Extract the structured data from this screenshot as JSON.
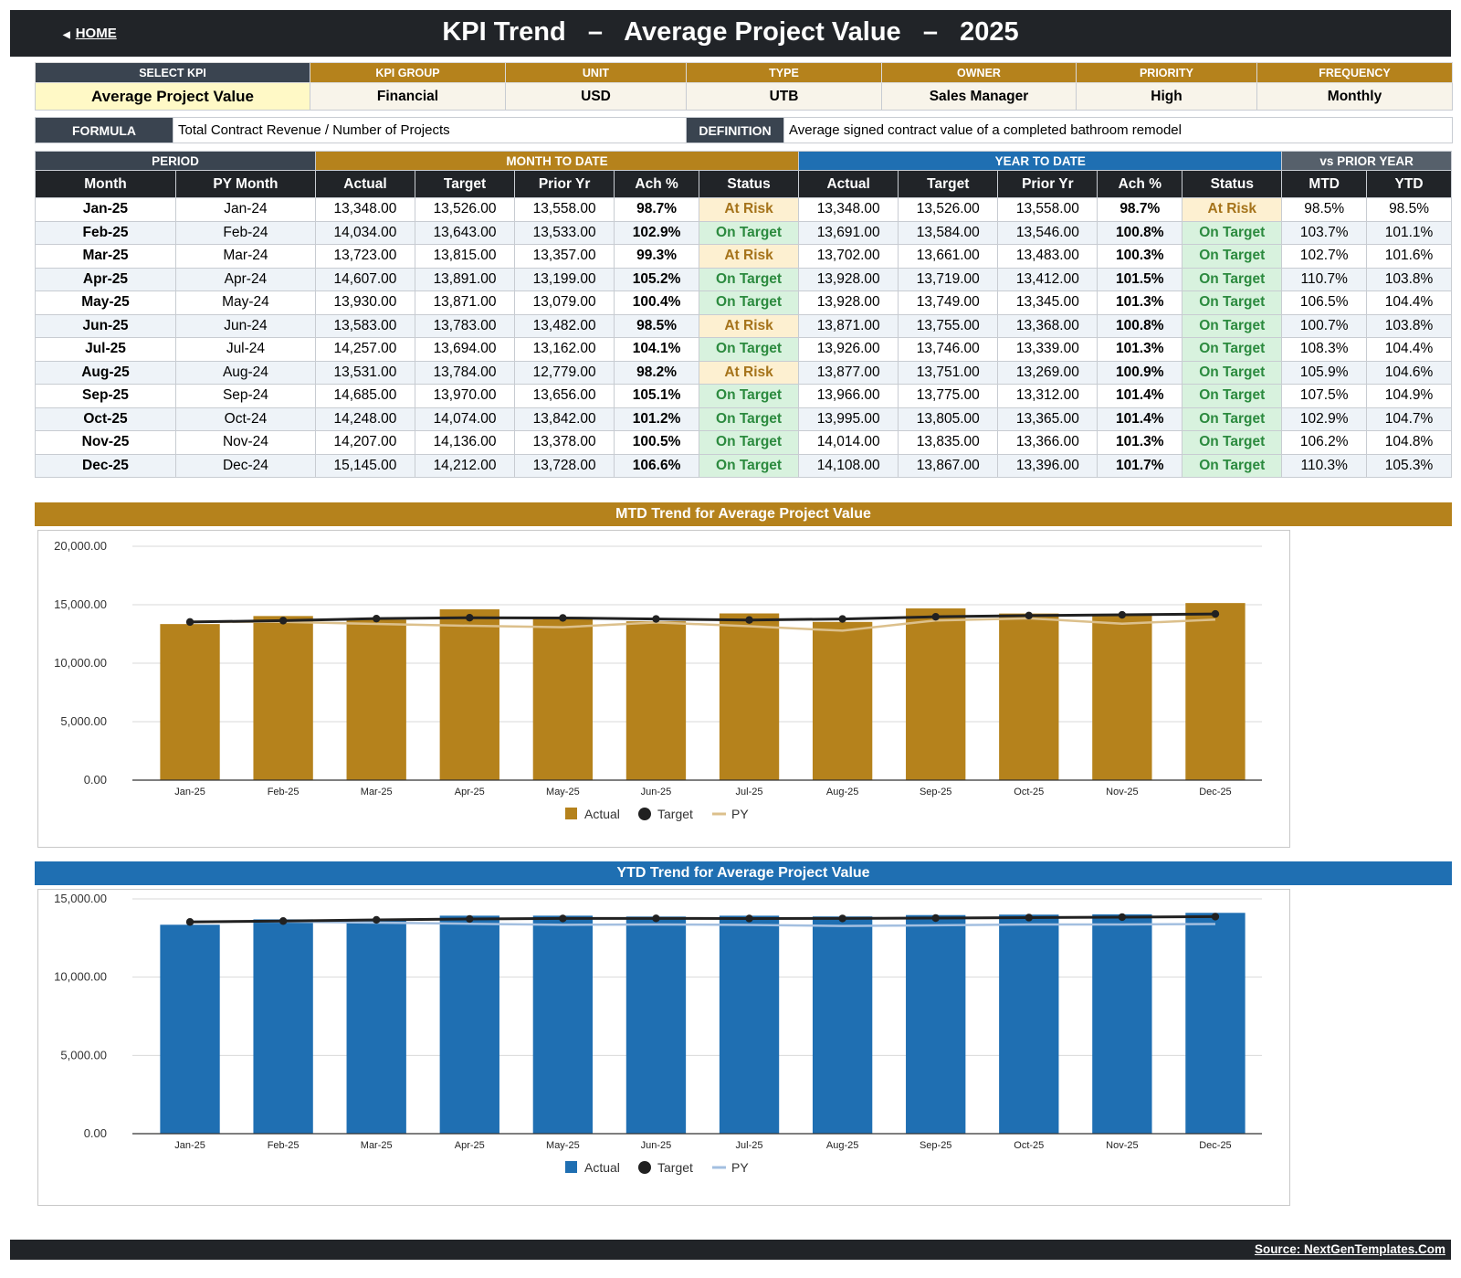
{
  "header": {
    "home_label": "HOME",
    "title": "KPI Trend   –   Average Project Value   –   2025"
  },
  "meta": {
    "headers": [
      "SELECT KPI",
      "KPI GROUP",
      "UNIT",
      "TYPE",
      "OWNER",
      "PRIORITY",
      "FREQUENCY"
    ],
    "values": [
      "Average Project Value",
      "Financial",
      "USD",
      "UTB",
      "Sales Manager",
      "High",
      "Monthly"
    ]
  },
  "formula": {
    "formula_label": "FORMULA",
    "formula_text": "Total Contract Revenue / Number of Projects",
    "definition_label": "DEFINITION",
    "definition_text": "Average signed contract value of a completed bathroom remodel"
  },
  "table": {
    "groups": [
      "PERIOD",
      "MONTH TO DATE",
      "YEAR TO DATE",
      "vs PRIOR YEAR"
    ],
    "columns": [
      "Month",
      "PY Month",
      "Actual",
      "Target",
      "Prior Yr",
      "Ach %",
      "Status",
      "Actual",
      "Target",
      "Prior Yr",
      "Ach %",
      "Status",
      "MTD",
      "YTD"
    ],
    "rows": [
      [
        "Jan-25",
        "Jan-24",
        "13,348.00",
        "13,526.00",
        "13,558.00",
        "98.7%",
        "At Risk",
        "13,348.00",
        "13,526.00",
        "13,558.00",
        "98.7%",
        "At Risk",
        "98.5%",
        "98.5%"
      ],
      [
        "Feb-25",
        "Feb-24",
        "14,034.00",
        "13,643.00",
        "13,533.00",
        "102.9%",
        "On Target",
        "13,691.00",
        "13,584.00",
        "13,546.00",
        "100.8%",
        "On Target",
        "103.7%",
        "101.1%"
      ],
      [
        "Mar-25",
        "Mar-24",
        "13,723.00",
        "13,815.00",
        "13,357.00",
        "99.3%",
        "At Risk",
        "13,702.00",
        "13,661.00",
        "13,483.00",
        "100.3%",
        "On Target",
        "102.7%",
        "101.6%"
      ],
      [
        "Apr-25",
        "Apr-24",
        "14,607.00",
        "13,891.00",
        "13,199.00",
        "105.2%",
        "On Target",
        "13,928.00",
        "13,719.00",
        "13,412.00",
        "101.5%",
        "On Target",
        "110.7%",
        "103.8%"
      ],
      [
        "May-25",
        "May-24",
        "13,930.00",
        "13,871.00",
        "13,079.00",
        "100.4%",
        "On Target",
        "13,928.00",
        "13,749.00",
        "13,345.00",
        "101.3%",
        "On Target",
        "106.5%",
        "104.4%"
      ],
      [
        "Jun-25",
        "Jun-24",
        "13,583.00",
        "13,783.00",
        "13,482.00",
        "98.5%",
        "At Risk",
        "13,871.00",
        "13,755.00",
        "13,368.00",
        "100.8%",
        "On Target",
        "100.7%",
        "103.8%"
      ],
      [
        "Jul-25",
        "Jul-24",
        "14,257.00",
        "13,694.00",
        "13,162.00",
        "104.1%",
        "On Target",
        "13,926.00",
        "13,746.00",
        "13,339.00",
        "101.3%",
        "On Target",
        "108.3%",
        "104.4%"
      ],
      [
        "Aug-25",
        "Aug-24",
        "13,531.00",
        "13,784.00",
        "12,779.00",
        "98.2%",
        "At Risk",
        "13,877.00",
        "13,751.00",
        "13,269.00",
        "100.9%",
        "On Target",
        "105.9%",
        "104.6%"
      ],
      [
        "Sep-25",
        "Sep-24",
        "14,685.00",
        "13,970.00",
        "13,656.00",
        "105.1%",
        "On Target",
        "13,966.00",
        "13,775.00",
        "13,312.00",
        "101.4%",
        "On Target",
        "107.5%",
        "104.9%"
      ],
      [
        "Oct-25",
        "Oct-24",
        "14,248.00",
        "14,074.00",
        "13,842.00",
        "101.2%",
        "On Target",
        "13,995.00",
        "13,805.00",
        "13,365.00",
        "101.4%",
        "On Target",
        "102.9%",
        "104.7%"
      ],
      [
        "Nov-25",
        "Nov-24",
        "14,207.00",
        "14,136.00",
        "13,378.00",
        "100.5%",
        "On Target",
        "14,014.00",
        "13,835.00",
        "13,366.00",
        "101.3%",
        "On Target",
        "106.2%",
        "104.8%"
      ],
      [
        "Dec-25",
        "Dec-24",
        "15,145.00",
        "14,212.00",
        "13,728.00",
        "106.6%",
        "On Target",
        "14,108.00",
        "13,867.00",
        "13,396.00",
        "101.7%",
        "On Target",
        "110.3%",
        "105.3%"
      ]
    ]
  },
  "chart_data": [
    {
      "type": "bar",
      "title": "MTD Trend for Average Project Value",
      "categories": [
        "Jan-25",
        "Feb-25",
        "Mar-25",
        "Apr-25",
        "May-25",
        "Jun-25",
        "Jul-25",
        "Aug-25",
        "Sep-25",
        "Oct-25",
        "Nov-25",
        "Dec-25"
      ],
      "series": [
        {
          "name": "Actual",
          "kind": "bar",
          "color": "#b5821c",
          "values": [
            13348,
            14034,
            13723,
            14607,
            13930,
            13583,
            14257,
            13531,
            14685,
            14248,
            14207,
            15145
          ]
        },
        {
          "name": "Target",
          "kind": "line-marker",
          "color": "#212121",
          "values": [
            13526,
            13643,
            13815,
            13891,
            13871,
            13783,
            13694,
            13784,
            13970,
            14074,
            14136,
            14212
          ]
        },
        {
          "name": "PY",
          "kind": "line",
          "color": "#dcc08c",
          "values": [
            13558,
            13533,
            13357,
            13199,
            13079,
            13482,
            13162,
            12779,
            13656,
            13842,
            13378,
            13728
          ]
        }
      ],
      "ylim": [
        0,
        20000
      ],
      "yticks": [
        "0.00",
        "5,000.00",
        "10,000.00",
        "15,000.00",
        "20,000.00"
      ],
      "ytick_values": [
        0,
        5000,
        10000,
        15000,
        20000
      ],
      "grid": true,
      "legend": "bottom-center"
    },
    {
      "type": "bar",
      "title": "YTD Trend for Average Project Value",
      "categories": [
        "Jan-25",
        "Feb-25",
        "Mar-25",
        "Apr-25",
        "May-25",
        "Jun-25",
        "Jul-25",
        "Aug-25",
        "Sep-25",
        "Oct-25",
        "Nov-25",
        "Dec-25"
      ],
      "series": [
        {
          "name": "Actual",
          "kind": "bar",
          "color": "#1f6fb2",
          "values": [
            13348,
            13691,
            13702,
            13928,
            13928,
            13871,
            13926,
            13877,
            13966,
            13995,
            14014,
            14108
          ]
        },
        {
          "name": "Target",
          "kind": "line-marker",
          "color": "#212121",
          "values": [
            13526,
            13584,
            13661,
            13719,
            13749,
            13755,
            13746,
            13751,
            13775,
            13805,
            13835,
            13867
          ]
        },
        {
          "name": "PY",
          "kind": "line",
          "color": "#a3bfe0",
          "values": [
            13558,
            13546,
            13483,
            13412,
            13345,
            13368,
            13339,
            13269,
            13312,
            13365,
            13366,
            13396
          ]
        }
      ],
      "ylim": [
        0,
        15000
      ],
      "yticks": [
        "0.00",
        "5,000.00",
        "10,000.00",
        "15,000.00"
      ],
      "ytick_values": [
        0,
        5000,
        10000,
        15000
      ],
      "grid": true,
      "legend": "bottom-center"
    }
  ],
  "footer": {
    "source": "Source: NextGenTemplates.Com"
  }
}
